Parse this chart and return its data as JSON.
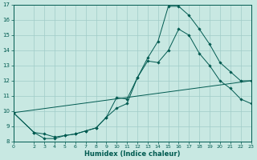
{
  "xlabel": "Humidex (Indice chaleur)",
  "background_color": "#c8e8e2",
  "grid_color": "#a0ccc8",
  "line_color": "#005a50",
  "xlim": [
    0,
    23
  ],
  "ylim": [
    8,
    17
  ],
  "xticks": [
    0,
    2,
    3,
    4,
    5,
    6,
    7,
    8,
    9,
    10,
    11,
    12,
    13,
    14,
    15,
    16,
    17,
    18,
    19,
    20,
    21,
    22,
    23
  ],
  "yticks": [
    8,
    9,
    10,
    11,
    12,
    13,
    14,
    15,
    16,
    17
  ],
  "line1_x": [
    0,
    2,
    3,
    4,
    5,
    6,
    7,
    8,
    9,
    10,
    11,
    12,
    13,
    14,
    15,
    16,
    17,
    18,
    19,
    20,
    21,
    22,
    23
  ],
  "line1_y": [
    9.9,
    8.6,
    8.2,
    8.2,
    8.4,
    8.5,
    8.7,
    8.9,
    9.6,
    10.2,
    10.5,
    12.2,
    13.5,
    14.6,
    16.9,
    16.9,
    16.3,
    15.4,
    14.4,
    13.2,
    12.6,
    12.0,
    12.0
  ],
  "line2_x": [
    0,
    2,
    3,
    4,
    5,
    6,
    7,
    8,
    9,
    10,
    11,
    12,
    13,
    14,
    15,
    16,
    17,
    18,
    19,
    20,
    21,
    22,
    23
  ],
  "line2_y": [
    9.9,
    8.6,
    8.5,
    8.3,
    8.4,
    8.5,
    8.7,
    8.9,
    9.6,
    10.9,
    10.8,
    12.2,
    13.3,
    13.2,
    14.0,
    15.4,
    15.0,
    13.8,
    13.0,
    12.0,
    11.5,
    10.8,
    10.5
  ],
  "line3_x": [
    0,
    23
  ],
  "line3_y": [
    9.9,
    12.0
  ],
  "xtick_fontsize": 4.5,
  "ytick_fontsize": 5.0,
  "xlabel_fontsize": 6.0,
  "linewidth": 0.7,
  "markersize": 1.8
}
